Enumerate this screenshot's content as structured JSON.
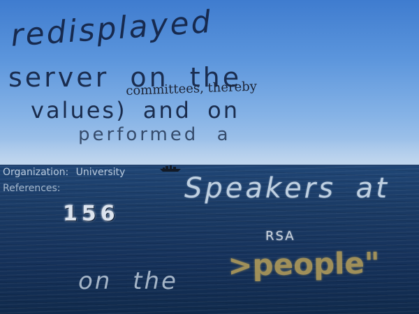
{
  "overlay_text": {
    "line1": "redisplayed",
    "line2": "server on the",
    "line3": "committees, thereby",
    "line4": "values) and on",
    "line5": "performed a",
    "line6": "Organization: University",
    "line7": "References:",
    "line8": "Speakers at",
    "line9": "156",
    "line10": "RSA",
    "line11": ">people\"",
    "line12": "on the"
  }
}
